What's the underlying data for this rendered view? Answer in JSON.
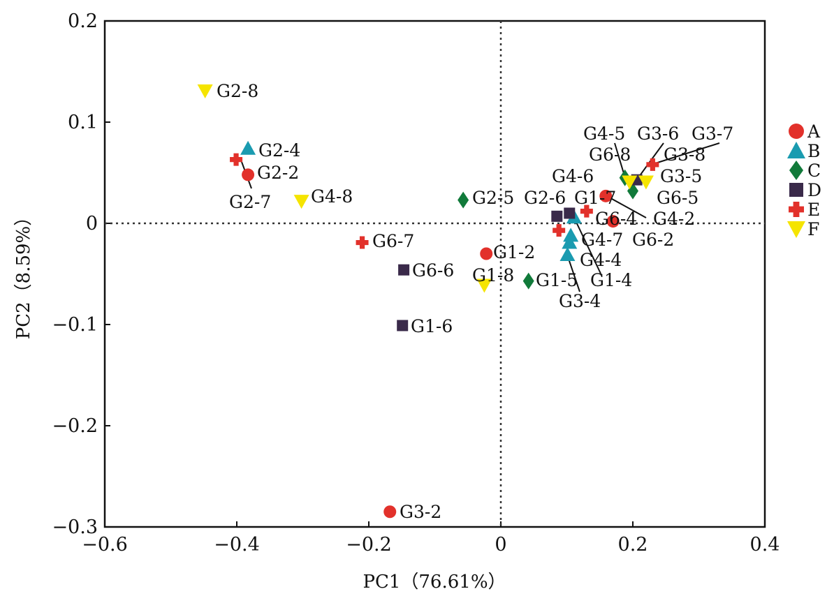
{
  "chart_data": {
    "type": "scatter",
    "title": "",
    "xlabel": "PC1（76.61%）",
    "ylabel": "PC2（8.59%）",
    "xlim": [
      -0.6,
      0.4
    ],
    "ylim": [
      -0.3,
      0.2
    ],
    "xticks": [
      "-0.6",
      "-0.4",
      "-0.2",
      "0",
      "0.2",
      "0.4"
    ],
    "yticks": [
      "-0.3",
      "-0.2",
      "-0.1",
      "0",
      "0.1",
      "0.2"
    ],
    "legend_position": "right",
    "series": [
      {
        "name": "A",
        "color": "#e2312b",
        "marker": "circle",
        "points": [
          {
            "label": "G2-2",
            "x": -0.383,
            "y": 0.048
          },
          {
            "label": "G1-2",
            "x": -0.022,
            "y": -0.03
          },
          {
            "label": "G3-2",
            "x": -0.168,
            "y": -0.285
          },
          {
            "label": "G1-7",
            "x": 0.159,
            "y": 0.027
          },
          {
            "label": "G6-2",
            "x": 0.17,
            "y": 0.002
          }
        ]
      },
      {
        "name": "B",
        "color": "#1a9bb0",
        "marker": "triangle",
        "points": [
          {
            "label": "G2-4",
            "x": -0.383,
            "y": 0.074
          },
          {
            "label": "",
            "x": 0.111,
            "y": 0.006
          },
          {
            "label": "G4-7",
            "x": 0.106,
            "y": -0.012
          },
          {
            "label": "G4-4",
            "x": 0.104,
            "y": -0.019
          },
          {
            "label": "G3-4",
            "x": 0.101,
            "y": -0.031
          }
        ]
      },
      {
        "name": "C",
        "color": "#117a3a",
        "marker": "diamond",
        "points": [
          {
            "label": "G2-5",
            "x": -0.057,
            "y": 0.023
          },
          {
            "label": "G1-5",
            "x": 0.042,
            "y": -0.057
          },
          {
            "label": "G4-5",
            "x": 0.188,
            "y": 0.045
          },
          {
            "label": "G6-5",
            "x": 0.2,
            "y": 0.032
          }
        ]
      },
      {
        "name": "D",
        "color": "#3a2a4a",
        "marker": "square",
        "points": [
          {
            "label": "G6-6",
            "x": -0.147,
            "y": -0.046
          },
          {
            "label": "G1-6",
            "x": -0.149,
            "y": -0.101
          },
          {
            "label": "G2-6",
            "x": 0.104,
            "y": 0.01
          },
          {
            "label": "G4-6",
            "x": 0.085,
            "y": 0.007
          },
          {
            "label": "G3-6",
            "x": 0.206,
            "y": 0.043
          }
        ]
      },
      {
        "name": "E",
        "color": "#e2312b",
        "marker": "cross",
        "points": [
          {
            "label": "G2-7",
            "x": -0.401,
            "y": 0.063
          },
          {
            "label": "G6-7",
            "x": -0.21,
            "y": -0.019
          },
          {
            "label": "G6-4",
            "x": 0.13,
            "y": 0.012
          },
          {
            "label": "G1-4",
            "x": 0.088,
            "y": -0.007
          },
          {
            "label": "G3-7",
            "x": 0.23,
            "y": 0.058
          }
        ]
      },
      {
        "name": "F",
        "color": "#f5e400",
        "marker": "triangle-down",
        "points": [
          {
            "label": "G2-8",
            "x": -0.448,
            "y": 0.131
          },
          {
            "label": "G4-8",
            "x": -0.302,
            "y": 0.022
          },
          {
            "label": "G1-8",
            "x": -0.025,
            "y": -0.061
          },
          {
            "label": "G6-8",
            "x": 0.195,
            "y": 0.041
          },
          {
            "label": "G3-5",
            "x": 0.22,
            "y": 0.041
          }
        ]
      }
    ],
    "extra_labels": [
      "G3-8",
      "G4-2"
    ]
  }
}
